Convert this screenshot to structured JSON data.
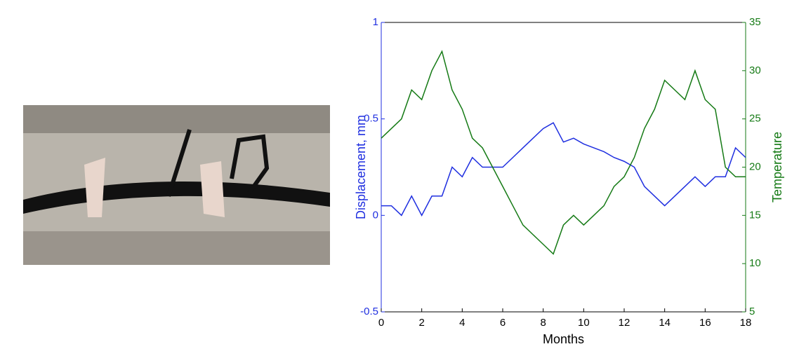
{
  "chart_data": {
    "type": "line",
    "x_label": "Months",
    "y_label": "Displacement, mm",
    "y2_label": "Temperature",
    "x": [
      0,
      0.5,
      1,
      1.5,
      2,
      2.5,
      3,
      3.5,
      4,
      4.5,
      5,
      5.5,
      6,
      6.5,
      7,
      7.5,
      8,
      8.5,
      9,
      9.5,
      10,
      10.5,
      11,
      11.5,
      12,
      12.5,
      13,
      13.5,
      14,
      14.5,
      15,
      15.5,
      16,
      16.5,
      17,
      17.5,
      18
    ],
    "series": [
      {
        "name": "Displacement, mm",
        "color": "#1f2fe0",
        "axis": "y",
        "values": [
          0.05,
          0.05,
          0.0,
          0.1,
          0.0,
          0.1,
          0.1,
          0.25,
          0.2,
          0.3,
          0.25,
          0.25,
          0.25,
          0.3,
          0.35,
          0.4,
          0.45,
          0.48,
          0.38,
          0.4,
          0.37,
          0.35,
          0.33,
          0.3,
          0.28,
          0.25,
          0.15,
          0.1,
          0.05,
          0.1,
          0.15,
          0.2,
          0.15,
          0.2,
          0.2,
          0.35,
          0.3
        ]
      },
      {
        "name": "Temperature",
        "color": "#157a15",
        "axis": "y2",
        "values": [
          23,
          24,
          25,
          28,
          27,
          30,
          32,
          28,
          26,
          23,
          22,
          20,
          18,
          16,
          14,
          13,
          12,
          11,
          14,
          15,
          14,
          15,
          16,
          18,
          19,
          21,
          24,
          26,
          29,
          28,
          27,
          30,
          27,
          26,
          20,
          19,
          19
        ]
      }
    ],
    "xlim": [
      0,
      18
    ],
    "xticks": [
      0,
      2,
      4,
      6,
      8,
      10,
      12,
      14,
      16,
      18
    ],
    "ylim": [
      -0.5,
      1
    ],
    "yticks": [
      -0.5,
      0,
      0.5,
      1
    ],
    "y2lim": [
      5,
      35
    ],
    "y2ticks": [
      5,
      10,
      15,
      20,
      25,
      30,
      35
    ]
  }
}
